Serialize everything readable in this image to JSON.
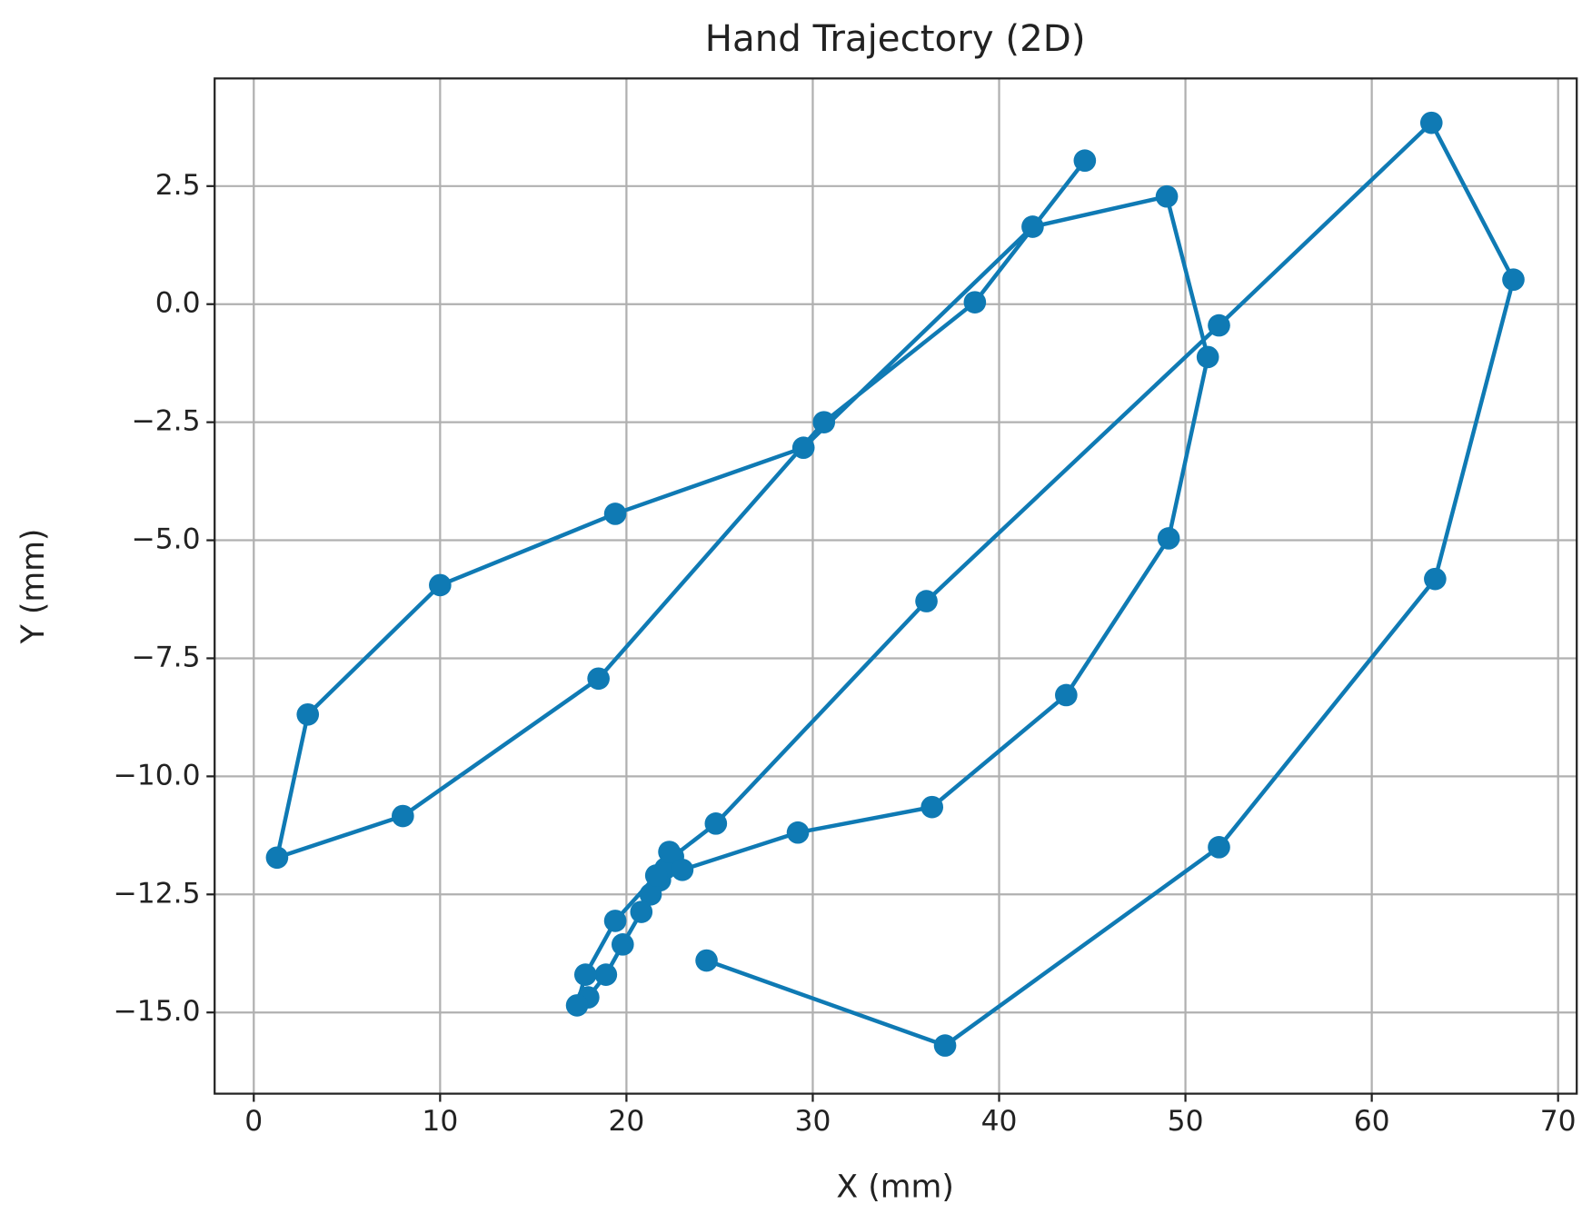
{
  "chart_data": {
    "type": "line",
    "title": "Hand Trajectory (2D)",
    "x_label": "X (mm)",
    "y_label": "Y (mm)",
    "grid": true,
    "markers": true,
    "x": [
      24.3,
      37.1,
      51.8,
      63.4,
      67.6,
      63.2,
      51.8,
      36.1,
      24.8,
      22.5,
      22.1,
      21.8,
      21.3,
      20.8,
      19.8,
      18.9,
      17.95,
      17.35,
      17.8,
      19.4,
      21.6,
      22.3,
      23.0,
      29.2,
      36.4,
      43.6,
      49.1,
      51.2,
      49.0,
      41.8,
      29.5,
      19.4,
      10.0,
      2.9,
      1.25,
      8.0,
      18.5,
      30.6,
      38.7,
      44.6
    ],
    "series": [
      {
        "name": "Hand",
        "color": "#0f7ab4",
        "values": [
          -13.9,
          -15.7,
          -11.5,
          -5.82,
          0.52,
          3.84,
          -0.45,
          -6.29,
          -11.0,
          -11.7,
          -11.95,
          -12.2,
          -12.5,
          -12.87,
          -13.56,
          -14.2,
          -14.68,
          -14.85,
          -14.2,
          -13.06,
          -12.1,
          -11.6,
          -11.98,
          -11.19,
          -10.65,
          -8.28,
          -4.96,
          -1.12,
          2.28,
          1.64,
          -3.04,
          -4.44,
          -5.95,
          -8.69,
          -11.72,
          -10.84,
          -7.93,
          -2.5,
          0.04,
          3.04
        ]
      }
    ],
    "xlim": [
      -2.1,
      71.0
    ],
    "xticks": [
      0,
      10,
      20,
      30,
      40,
      50,
      60,
      70
    ],
    "ylim": [
      -16.72,
      4.78
    ],
    "yticks": [
      {
        "value": -15,
        "label": "−15.0"
      },
      {
        "value": -12.5,
        "label": "−12.5"
      },
      {
        "value": -10,
        "label": "−10.0"
      },
      {
        "value": -7.5,
        "label": "−7.5"
      },
      {
        "value": -5,
        "label": "−5.0"
      },
      {
        "value": -2.5,
        "label": "−2.5"
      },
      {
        "value": 0,
        "label": "0.0"
      },
      {
        "value": 2.5,
        "label": "2.5"
      }
    ]
  }
}
